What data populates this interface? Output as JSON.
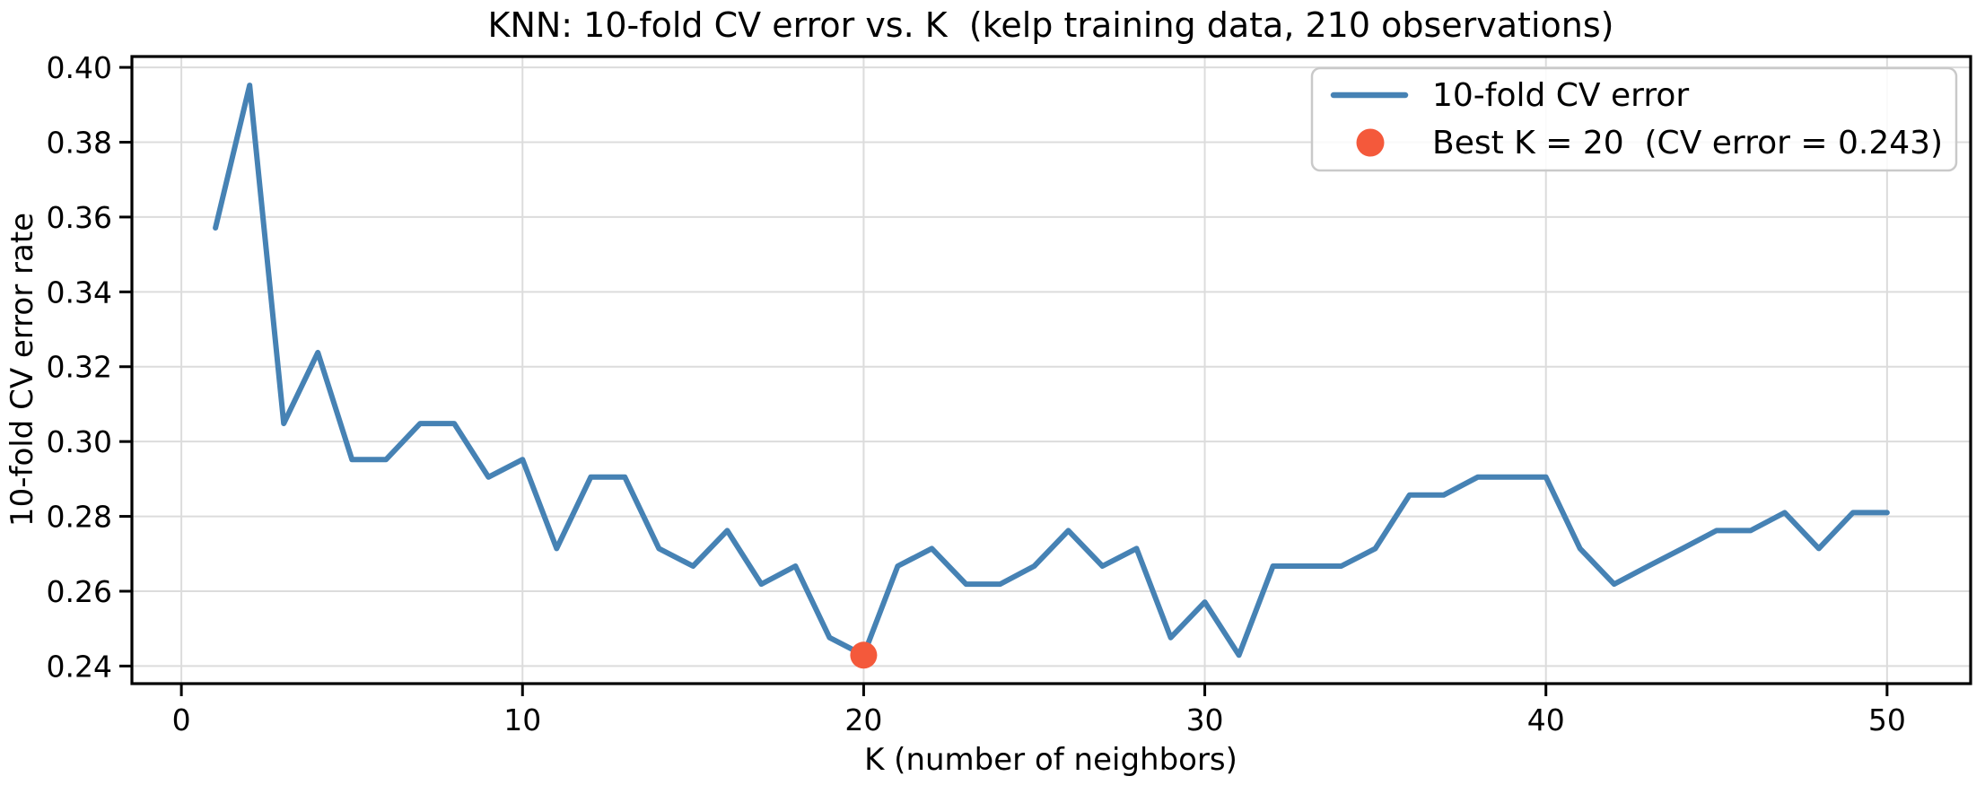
{
  "chart_data": {
    "type": "line",
    "title": "KNN: 10-fold CV error vs. K  (kelp training data, 210 observations)",
    "xlabel": "K (number of neighbors)",
    "ylabel": "10-fold CV error rate",
    "x": [
      1,
      2,
      3,
      4,
      5,
      6,
      7,
      8,
      9,
      10,
      11,
      12,
      13,
      14,
      15,
      16,
      17,
      18,
      19,
      20,
      21,
      22,
      23,
      24,
      25,
      26,
      27,
      28,
      29,
      30,
      31,
      32,
      33,
      34,
      35,
      36,
      37,
      38,
      39,
      40,
      41,
      42,
      43,
      44,
      45,
      46,
      47,
      48,
      49,
      50
    ],
    "series": [
      {
        "name": "10-fold CV error",
        "color": "#4682B4",
        "values": [
          0.3571,
          0.3952,
          0.3048,
          0.3238,
          0.2952,
          0.2952,
          0.3048,
          0.3048,
          0.2905,
          0.2952,
          0.2714,
          0.2905,
          0.2905,
          0.2714,
          0.2667,
          0.2762,
          0.2619,
          0.2667,
          0.2476,
          0.2429,
          0.2667,
          0.2714,
          0.2619,
          0.2619,
          0.2667,
          0.2762,
          0.2667,
          0.2714,
          0.2476,
          0.2571,
          0.2429,
          0.2667,
          0.2667,
          0.2667,
          0.2714,
          0.2857,
          0.2857,
          0.2905,
          0.2905,
          0.2905,
          0.2714,
          0.2619,
          0.2667,
          0.2714,
          0.2762,
          0.2762,
          0.281,
          0.2714,
          0.281,
          0.281
        ]
      }
    ],
    "best_point": {
      "k": 20,
      "cv_error": 0.243,
      "label": "Best K = 20  (CV error = 0.243)",
      "color": "#F4593B"
    },
    "x_ticks": [
      0,
      10,
      20,
      30,
      40,
      50
    ],
    "y_ticks": [
      0.24,
      0.26,
      0.28,
      0.3,
      0.32,
      0.34,
      0.36,
      0.38,
      0.4
    ],
    "xlim": [
      -1.45,
      52.45
    ],
    "ylim": [
      0.2353,
      0.4029
    ],
    "grid": true,
    "grid_color": "#DCDCDC",
    "spine_color": "#000000",
    "legend_position": "upper right"
  }
}
